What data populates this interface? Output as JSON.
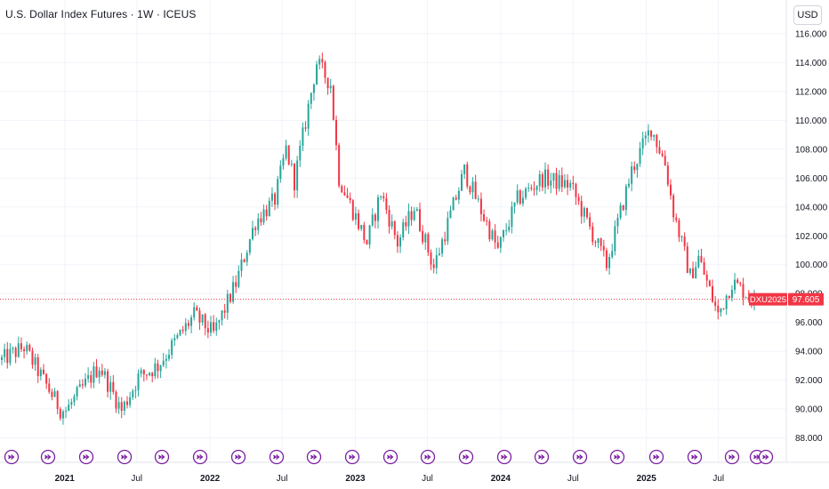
{
  "header": {
    "title": "U.S. Dollar Index Futures · 1W · ICEUS",
    "currency_label": "USD"
  },
  "price_scale": {
    "symbol_tag": "DXU2025",
    "last_price_label": "97.605",
    "last_price": 97.605
  },
  "colors": {
    "up": "#26a69a",
    "down": "#f23645",
    "grid": "#f0f3fa",
    "event_marker": "#7b1fa2",
    "price_line": "#f23645"
  },
  "event_icon": "arrow-right-circle-icon",
  "chart_data": {
    "type": "candlestick",
    "title": "U.S. Dollar Index Futures · 1W · ICEUS",
    "y_tick_labels": [
      "88.000",
      "90.000",
      "92.000",
      "94.000",
      "96.000",
      "98.000",
      "100.000",
      "102.000",
      "104.000",
      "106.000",
      "108.000",
      "110.000",
      "112.000",
      "114.000",
      "116.000"
    ],
    "y_range": [
      87.3,
      116.3
    ],
    "x_tick_labels": [
      {
        "label": "2021",
        "date": "2021-01-01",
        "year": true
      },
      {
        "label": "Jul",
        "date": "2021-07-01",
        "year": false
      },
      {
        "label": "2022",
        "date": "2022-01-01",
        "year": true
      },
      {
        "label": "Jul",
        "date": "2022-07-01",
        "year": false
      },
      {
        "label": "2023",
        "date": "2023-01-01",
        "year": true
      },
      {
        "label": "Jul",
        "date": "2023-07-01",
        "year": false
      },
      {
        "label": "2024",
        "date": "2024-01-01",
        "year": true
      },
      {
        "label": "Jul",
        "date": "2024-07-01",
        "year": false
      },
      {
        "label": "2025",
        "date": "2025-01-01",
        "year": true
      },
      {
        "label": "Jul",
        "date": "2025-07-01",
        "year": false
      }
    ],
    "x_range": [
      "2020-07-27",
      "2025-09-29"
    ],
    "grid": true,
    "last_price_line": 97.605,
    "weekly_close_anchors": [
      {
        "date": "2020-07-27",
        "close": 93.4
      },
      {
        "date": "2020-09-21",
        "close": 94.3
      },
      {
        "date": "2020-12-21",
        "close": 90.0
      },
      {
        "date": "2021-01-04",
        "close": 89.9
      },
      {
        "date": "2021-03-29",
        "close": 93.0
      },
      {
        "date": "2021-05-24",
        "close": 89.9
      },
      {
        "date": "2021-07-05",
        "close": 92.2
      },
      {
        "date": "2021-08-23",
        "close": 93.0
      },
      {
        "date": "2021-11-22",
        "close": 96.5
      },
      {
        "date": "2022-01-10",
        "close": 95.2
      },
      {
        "date": "2022-03-07",
        "close": 98.7
      },
      {
        "date": "2022-04-25",
        "close": 103.0
      },
      {
        "date": "2022-06-13",
        "close": 104.5
      },
      {
        "date": "2022-07-11",
        "close": 108.0
      },
      {
        "date": "2022-08-01",
        "close": 105.8
      },
      {
        "date": "2022-09-26",
        "close": 114.0
      },
      {
        "date": "2022-10-31",
        "close": 112.5
      },
      {
        "date": "2022-11-21",
        "close": 106.0
      },
      {
        "date": "2023-01-30",
        "close": 101.5
      },
      {
        "date": "2023-03-06",
        "close": 105.0
      },
      {
        "date": "2023-04-17",
        "close": 101.5
      },
      {
        "date": "2023-05-29",
        "close": 104.0
      },
      {
        "date": "2023-07-17",
        "close": 99.8
      },
      {
        "date": "2023-10-02",
        "close": 106.5
      },
      {
        "date": "2023-12-25",
        "close": 101.0
      },
      {
        "date": "2024-02-12",
        "close": 104.5
      },
      {
        "date": "2024-04-15",
        "close": 106.0
      },
      {
        "date": "2024-06-24",
        "close": 105.5
      },
      {
        "date": "2024-09-23",
        "close": 100.0
      },
      {
        "date": "2024-11-25",
        "close": 106.5
      },
      {
        "date": "2025-01-13",
        "close": 109.5
      },
      {
        "date": "2025-02-17",
        "close": 107.0
      },
      {
        "date": "2025-03-10",
        "close": 103.7
      },
      {
        "date": "2025-04-21",
        "close": 99.2
      },
      {
        "date": "2025-05-12",
        "close": 100.5
      },
      {
        "date": "2025-06-30",
        "close": 96.5
      },
      {
        "date": "2025-08-04",
        "close": 98.8
      },
      {
        "date": "2025-09-29",
        "close": 97.6
      }
    ]
  }
}
